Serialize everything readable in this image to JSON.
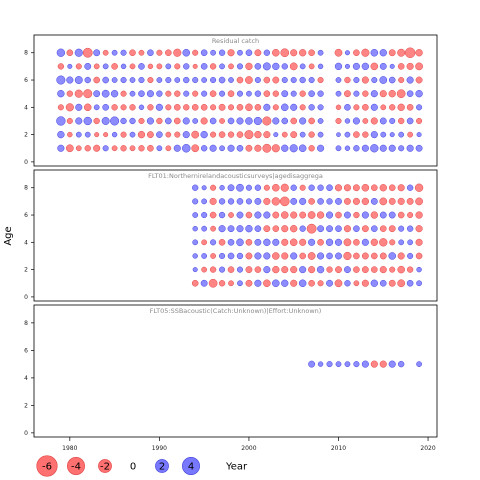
{
  "chart_data": {
    "type": "bubble",
    "ylabel": "Age",
    "xlim": [
      1976,
      2021
    ],
    "ages": [
      1,
      2,
      3,
      4,
      5,
      6,
      7,
      8
    ],
    "y_ticks": [
      0,
      2,
      4,
      6,
      8
    ],
    "x_ticks": [
      1980,
      1990,
      2000,
      2010,
      2020
    ],
    "colors": {
      "negative": "#ff7070",
      "positive": "#7878ff",
      "edge_negative": "#e04545",
      "edge_positive": "#4040dd"
    },
    "legend": {
      "values": [
        -6,
        -4,
        -2,
        0,
        2,
        4
      ],
      "labels": [
        "-6",
        "-4",
        "-2",
        "0",
        "2",
        "4"
      ],
      "xlabel": "Year"
    },
    "panels": [
      {
        "title": "Residual catch",
        "years": [
          1979,
          1980,
          1981,
          1982,
          1983,
          1984,
          1985,
          1986,
          1987,
          1988,
          1989,
          1990,
          1991,
          1992,
          1993,
          1994,
          1995,
          1996,
          1997,
          1998,
          1999,
          2000,
          2001,
          2002,
          2003,
          2004,
          2005,
          2006,
          2007,
          2008,
          2010,
          2011,
          2012,
          2013,
          2014,
          2015,
          2016,
          2017,
          2018,
          2019
        ],
        "residuals": {
          "8": [
            1.6,
            -0.8,
            1.5,
            -2.5,
            0.9,
            -0.5,
            0.5,
            0.6,
            -0.8,
            -0.5,
            0.8,
            -0.6,
            -0.8,
            -1.5,
            1.2,
            -0.6,
            0.8,
            0.5,
            0.7,
            -1.0,
            0.5,
            0.8,
            -0.9,
            0.7,
            -1.2,
            -1.8,
            -1.0,
            -1.1,
            -0.8,
            0.5,
            -1.3,
            0.3,
            -0.8,
            -1.5,
            1.2,
            1.1,
            -0.9,
            -1.4,
            -3.0,
            -1.1
          ],
          "7": [
            -0.7,
            0.3,
            -0.6,
            0.9,
            -0.5,
            0.5,
            -0.8,
            0.4,
            -0.5,
            0.8,
            -0.4,
            -0.5,
            0.5,
            -0.6,
            0.7,
            -0.3,
            0.8,
            -0.7,
            0.5,
            -0.5,
            0.6,
            -1.1,
            0.8,
            1.4,
            1.1,
            0.7,
            -1.3,
            0.5,
            -0.5,
            0.4,
            1.1,
            0.3,
            1.0,
            1.1,
            -1.2,
            0.9,
            0.3,
            -0.8,
            -1.0,
            -1.3
          ],
          "6": [
            2.0,
            1.0,
            1.4,
            0.7,
            -0.8,
            0.8,
            0.5,
            0.6,
            0.5,
            0.6,
            -0.6,
            0.5,
            0.6,
            0.5,
            0.7,
            0.6,
            0.5,
            0.6,
            0.8,
            0.5,
            -0.8,
            -1.3,
            0.6,
            -0.8,
            -0.9,
            0.6,
            0.6,
            0.7,
            0.6,
            -0.6,
            0.5,
            -0.7,
            0.6,
            -1.0,
            0.6,
            1.3,
            0.8,
            -0.6,
            1.0,
            -0.9
          ],
          "5": [
            1.1,
            -0.7,
            -1.5,
            -2.0,
            0.9,
            1.3,
            1.1,
            -0.6,
            0.5,
            0.8,
            1.0,
            0.7,
            -0.6,
            -0.7,
            0.6,
            -0.6,
            0.6,
            -0.8,
            0.6,
            -0.8,
            0.6,
            0.5,
            0.7,
            -0.8,
            -0.7,
            0.9,
            0.6,
            -0.7,
            0.8,
            0.7,
            0.5,
            -0.9,
            0.6,
            -0.7,
            1.0,
            -1.0,
            -1.1,
            -1.8,
            0.8,
            1.1
          ],
          "4": [
            -0.6,
            -1.5,
            1.0,
            -1.2,
            0.5,
            0.8,
            -0.7,
            -0.6,
            -0.7,
            0.4,
            -0.7,
            1.0,
            -0.6,
            -0.8,
            -0.7,
            -0.8,
            -0.8,
            -0.6,
            -0.9,
            -0.6,
            -0.8,
            -1.2,
            -0.8,
            1.0,
            -0.6,
            1.2,
            1.0,
            -0.6,
            0.7,
            0.6,
            -0.4,
            0.8,
            -0.6,
            -0.8,
            1.0,
            -0.5,
            -0.7,
            -1.1,
            -0.8,
            0.6
          ],
          "3": [
            2.2,
            -0.6,
            1.0,
            1.6,
            -0.7,
            1.4,
            2.0,
            0.7,
            0.7,
            -0.6,
            1.0,
            -0.7,
            0.8,
            -0.8,
            1.0,
            0.5,
            -1.0,
            0.8,
            -0.5,
            0.8,
            1.0,
            1.2,
            1.5,
            -2.0,
            1.0,
            0.8,
            -0.8,
            1.0,
            -0.8,
            0.5,
            -0.6,
            0.4,
            1.0,
            -0.5,
            -1.0,
            0.9,
            0.6,
            -0.7,
            0.8,
            -0.6
          ],
          "2": [
            1.1,
            -0.4,
            0.5,
            0.5,
            -0.3,
            -0.3,
            0.4,
            -0.6,
            0.5,
            -1.1,
            -0.9,
            0.8,
            -0.5,
            -0.6,
            1.0,
            -1.3,
            1.1,
            -0.6,
            -0.8,
            -0.7,
            -0.8,
            -2.0,
            -1.1,
            -1.0,
            0.3,
            -0.5,
            -0.9,
            0.5,
            -0.7,
            0.5,
            0.2,
            0.5,
            -0.8,
            -0.7,
            1.0,
            0.5,
            0.3,
            0.5,
            -0.5,
            0.3
          ],
          "1": [
            1.0,
            -1.3,
            -0.5,
            -0.7,
            -1.0,
            0.6,
            -0.5,
            -0.7,
            -0.5,
            -0.7,
            -0.8,
            0.5,
            -0.5,
            1.0,
            1.7,
            -1.3,
            0.7,
            1.0,
            0.5,
            1.0,
            0.8,
            -0.9,
            -1.0,
            -1.9,
            -1.5,
            1.1,
            1.5,
            1.2,
            -0.7,
            1.0,
            0.5,
            0.4,
            0.7,
            1.0,
            1.6,
            1.0,
            1.0,
            0.6,
            1.0,
            0.9
          ]
        }
      },
      {
        "title": "FLT01:Northernirelandacousticsurveys|agedisaggrega",
        "years": [
          1994,
          1995,
          1996,
          1997,
          1998,
          1999,
          2000,
          2001,
          2002,
          2003,
          2004,
          2005,
          2006,
          2007,
          2008,
          2009,
          2010,
          2011,
          2012,
          2013,
          2014,
          2015,
          2016,
          2017,
          2018,
          2019
        ],
        "residuals": {
          "8": [
            0.7,
            0.3,
            -0.6,
            0.4,
            0.9,
            1.3,
            0.6,
            0.7,
            -0.6,
            -1.2,
            -1.5,
            0.7,
            -0.6,
            0.7,
            0.7,
            0.8,
            -1.0,
            -1.0,
            -0.9,
            -1.2,
            -0.8,
            -1.1,
            -0.8,
            -1.0,
            0.7,
            -1.6
          ],
          "7": [
            0.6,
            0.5,
            -1.0,
            0.7,
            0.7,
            0.8,
            0.6,
            0.9,
            -1.0,
            -1.6,
            -2.4,
            0.9,
            1.0,
            -0.8,
            0.8,
            0.7,
            0.9,
            -0.9,
            -1.0,
            -1.1,
            0.9,
            -1.3,
            -0.9,
            -1.0,
            -0.9,
            -1.3
          ],
          "6": [
            0.5,
            0.6,
            -0.8,
            0.7,
            -0.5,
            0.9,
            -0.8,
            1.0,
            1.0,
            -0.9,
            -1.2,
            -1.0,
            -0.9,
            -1.3,
            -1.1,
            1.0,
            -0.8,
            0.9,
            -0.7,
            1.0,
            -1.1,
            0.9,
            0.9,
            -0.8,
            -0.6,
            -1.1
          ],
          "5": [
            0.4,
            0.5,
            -0.5,
            1.0,
            0.9,
            1.0,
            1.1,
            0.8,
            -0.9,
            -0.8,
            -1.0,
            -1.1,
            0.7,
            -2.5,
            0.9,
            0.9,
            0.8,
            -1.0,
            0.8,
            -0.9,
            0.8,
            -0.8,
            -0.9,
            0.6,
            0.7,
            -1.0
          ],
          "4": [
            0.5,
            -0.5,
            0.6,
            -0.8,
            0.8,
            1.2,
            -0.8,
            0.9,
            1.1,
            1.0,
            -1.0,
            -1.2,
            -1.0,
            1.0,
            -0.8,
            1.1,
            1.0,
            -1.3,
            -0.8,
            1.0,
            -1.1,
            -1.6,
            -0.6,
            0.5,
            0.5,
            -1.0
          ],
          "3": [
            0.4,
            0.5,
            -0.5,
            0.6,
            0.8,
            0.7,
            -0.9,
            1.0,
            1.0,
            -1.2,
            -1.0,
            1.0,
            -0.8,
            -1.3,
            1.0,
            0.8,
            0.9,
            -1.5,
            -0.8,
            -0.9,
            -0.8,
            -0.9,
            1.2,
            -1.0,
            0.6,
            -0.8
          ],
          "2": [
            0.3,
            -0.5,
            -0.7,
            0.6,
            -0.8,
            0.6,
            -0.9,
            -0.8,
            1.0,
            -1.1,
            -1.0,
            -1.0,
            1.0,
            -1.0,
            1.1,
            -0.7,
            -0.9,
            0.9,
            -0.8,
            -0.9,
            -0.8,
            -1.0,
            -0.6,
            -1.2,
            -0.7,
            0.4
          ],
          "1": [
            -0.8,
            0.9,
            -1.8,
            -0.7,
            -0.5,
            0.5,
            -0.9,
            1.0,
            -1.2,
            1.2,
            1.1,
            -1.0,
            1.2,
            -0.8,
            -0.6,
            0.9,
            -1.3,
            0.7,
            -0.5,
            -1.0,
            1.1,
            0.8,
            -0.9,
            -1.3,
            0.8,
            0.5
          ]
        }
      },
      {
        "title": "FLT05:SSBacoustic(Catch:Unknown)|Effort:Unknown)",
        "years": [
          2007,
          2008,
          2009,
          2010,
          2011,
          2012,
          2013,
          2014,
          2015,
          2016,
          2017,
          2019
        ],
        "residuals": {
          "5": [
            0.9,
            0.4,
            0.6,
            0.5,
            0.5,
            0.6,
            1.0,
            -1.0,
            -1.0,
            1.0,
            0.7,
            0.5
          ]
        }
      }
    ]
  }
}
